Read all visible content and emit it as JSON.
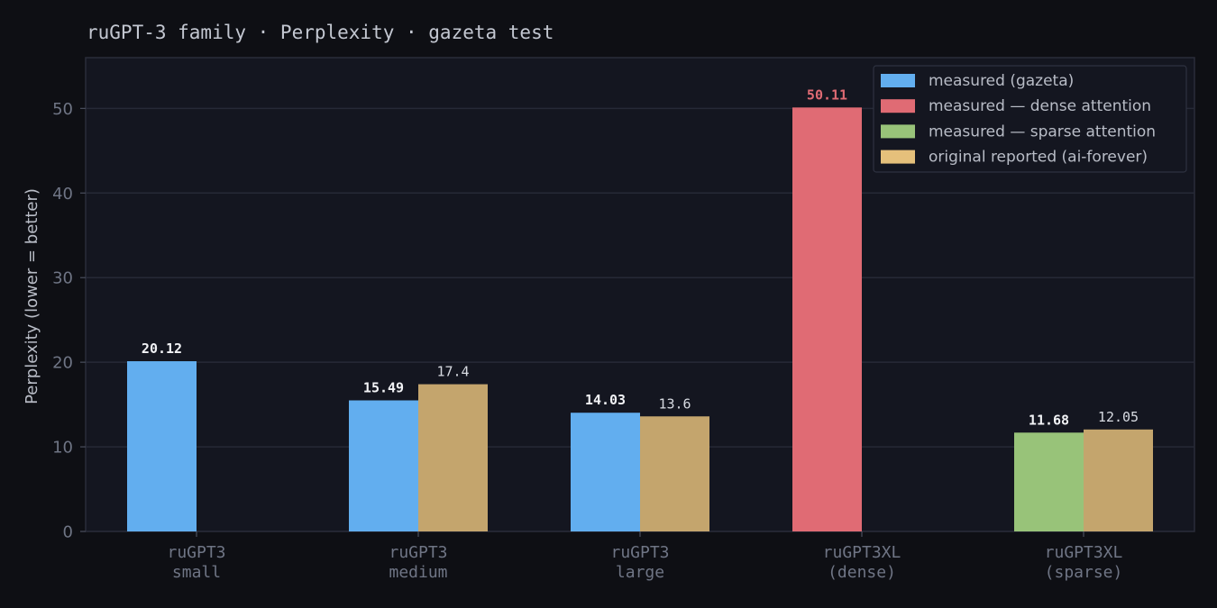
{
  "chart_data": {
    "type": "bar",
    "title": "ruGPT-3 family · Perplexity · gazeta test",
    "ylabel": "Perplexity  (lower = better)",
    "xlabel": "",
    "ylim": [
      0,
      56
    ],
    "yticks": [
      0,
      10,
      20,
      30,
      40,
      50
    ],
    "grid": true,
    "legend_position": "top-right",
    "categories": [
      [
        "ruGPT3",
        "small"
      ],
      [
        "ruGPT3",
        "medium"
      ],
      [
        "ruGPT3",
        "large"
      ],
      [
        "ruGPT3XL",
        "(dense)"
      ],
      [
        "ruGPT3XL",
        "(sparse)"
      ]
    ],
    "series": [
      {
        "name": "measured (gazeta)",
        "color": "#62aeef",
        "values": [
          20.12,
          15.49,
          14.03,
          null,
          null
        ],
        "labels": [
          "20.12",
          "15.49",
          "14.03",
          null,
          null
        ]
      },
      {
        "name": "measured — dense attention",
        "color": "#e06b74",
        "label_color": "#e06b74",
        "values": [
          null,
          null,
          null,
          50.11,
          null
        ],
        "labels": [
          null,
          null,
          null,
          "50.11",
          null
        ]
      },
      {
        "name": "measured — sparse attention",
        "color": "#98c379",
        "values": [
          null,
          null,
          null,
          null,
          11.68
        ],
        "labels": [
          null,
          null,
          null,
          null,
          "11.68"
        ]
      },
      {
        "name": "original reported (ai-forever)",
        "color": "#e5c07b",
        "bar_color": "#c4a56d",
        "values": [
          null,
          17.4,
          13.6,
          null,
          12.05
        ],
        "labels": [
          null,
          "17.4",
          "13.6",
          null,
          "12.05"
        ]
      }
    ]
  }
}
